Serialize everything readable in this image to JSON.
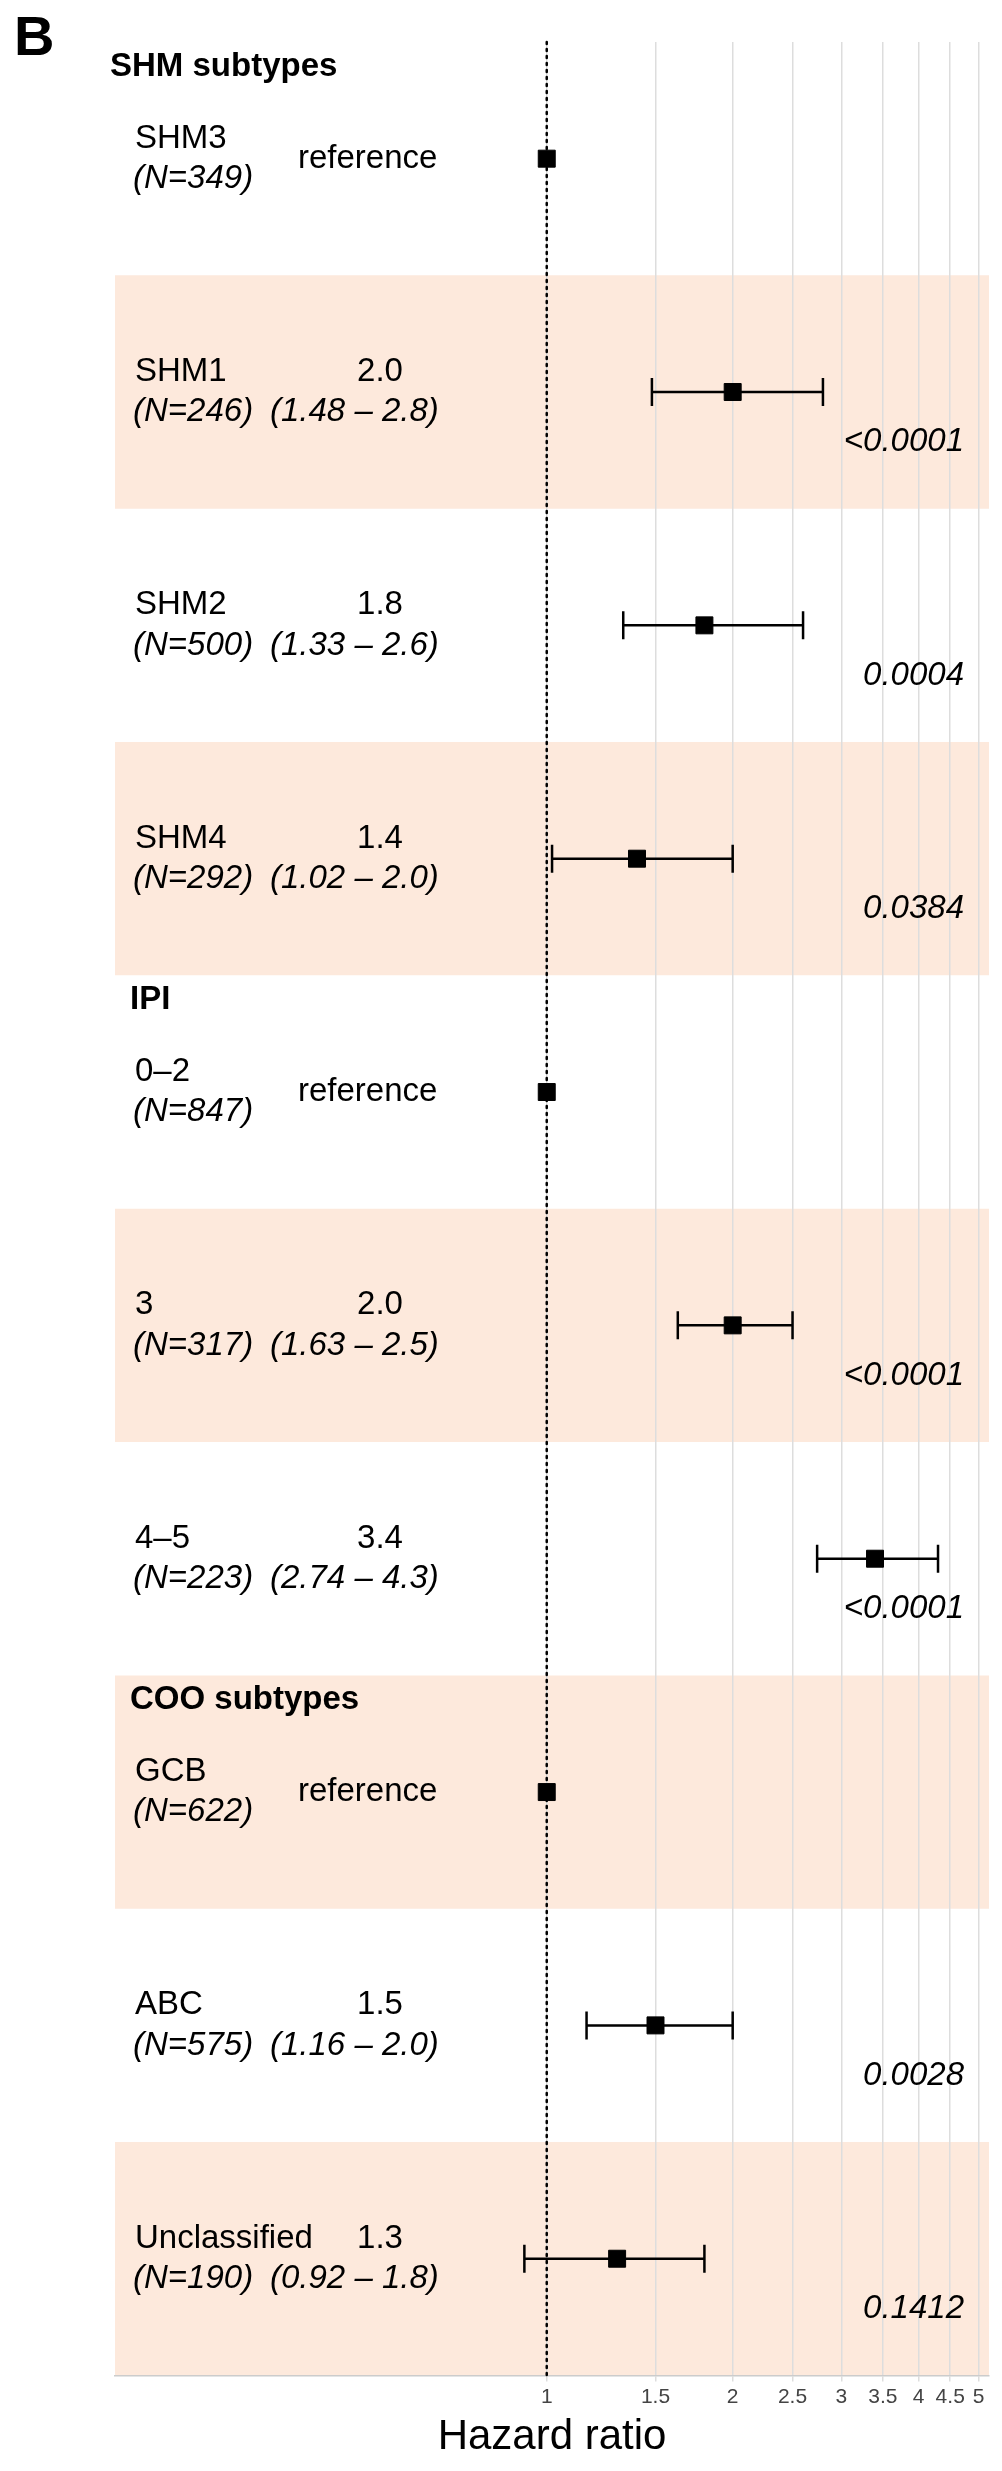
{
  "chart_data": {
    "type": "scatter",
    "orientation": "horizontal",
    "title": "B",
    "xlabel": "Hazard ratio",
    "categories": [
      "SHM3",
      "SHM1",
      "SHM2",
      "SHM4",
      "0–2",
      "3",
      "4–5",
      "GCB",
      "ABC",
      "Unclassified"
    ],
    "values": [
      1,
      2.0,
      1.8,
      1.4,
      1,
      2.0,
      3.4,
      1,
      1.5,
      1.3
    ],
    "errors": [
      null,
      [
        1.48,
        2.8
      ],
      [
        1.33,
        2.6
      ],
      [
        1.02,
        2.0
      ],
      null,
      [
        1.63,
        2.5
      ],
      [
        2.74,
        4.3
      ],
      null,
      [
        1.16,
        2.0
      ],
      [
        0.92,
        1.8
      ]
    ],
    "color": "#000000",
    "marker": "square",
    "log": "x",
    "xlim": [
      0.2,
      5.2
    ],
    "xticks": [
      1,
      1.5,
      2,
      2.5,
      3,
      3.5,
      4,
      4.5,
      5
    ],
    "grid": "x",
    "legend": false,
    "ref_lines": [
      {
        "axis": "x",
        "value": 1,
        "line_style": "dotted",
        "color": "#000000"
      }
    ],
    "bands": [
      {
        "axis": "y",
        "from": "SHM1",
        "to": "SHM1",
        "color": "#fde9dc"
      },
      {
        "axis": "y",
        "from": "SHM4",
        "to": "SHM4",
        "color": "#fde9dc"
      },
      {
        "axis": "y",
        "from": "3",
        "to": "3",
        "color": "#fde9dc"
      },
      {
        "axis": "y",
        "from": "GCB",
        "to": "GCB",
        "color": "#fde9dc"
      },
      {
        "axis": "y",
        "from": "Unclassified",
        "to": "Unclassified",
        "color": "#fde9dc"
      }
    ],
    "annotations": [
      "SHM subtypes",
      "(N=349)",
      "reference",
      "2.0",
      "(N=246)",
      "(1.48 – 2.8)",
      "<0.0001",
      "1.8",
      "(N=500)",
      "(1.33 – 2.6)",
      "0.0004",
      "1.4",
      "(N=292)",
      "(1.02 – 2.0)",
      "0.0384",
      "IPI",
      "(N=847)",
      "reference",
      "2.0",
      "(N=317)",
      "(1.63 – 2.5)",
      "<0.0001",
      "3.4",
      "(N=223)",
      "(2.74 – 4.3)",
      "<0.0001",
      "COO subtypes",
      "(N=622)",
      "reference",
      "1.5",
      "(N=575)",
      "(1.16 – 2.0)",
      "0.0028",
      "1.3",
      "(N=190)",
      "(0.92 – 1.8)",
      "0.1412"
    ]
  }
}
